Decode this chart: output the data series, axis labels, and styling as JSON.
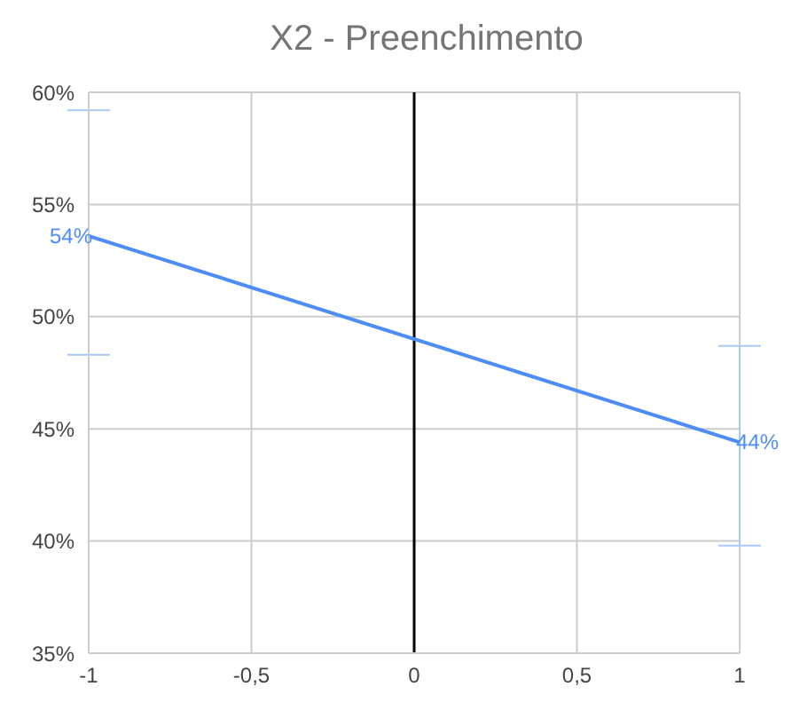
{
  "chart_data": {
    "type": "line",
    "title": "X2 - Preenchimento",
    "x": [
      -1,
      1
    ],
    "series": [
      {
        "color": "#4d8df5",
        "values": [
          53.6,
          44.4
        ],
        "errors": [
          [
            48.3,
            59.2
          ],
          [
            39.8,
            48.7
          ]
        ],
        "value_labels": [
          "54%",
          "44%"
        ]
      }
    ],
    "xlim": [
      -1,
      1
    ],
    "xticks": [
      -1,
      {
        "value": -0.5,
        "label": "-0,5"
      },
      0,
      {
        "value": 0.5,
        "label": "0,5"
      },
      1
    ],
    "ylim": [
      35,
      60
    ],
    "yticks": [
      {
        "value": 35,
        "label": "35%"
      },
      {
        "value": 40,
        "label": "40%"
      },
      {
        "value": 45,
        "label": "45%"
      },
      {
        "value": 50,
        "label": "50%"
      },
      {
        "value": 55,
        "label": "55%"
      },
      {
        "value": 60,
        "label": "60%"
      }
    ],
    "ref_lines": [
      {
        "axis": "x",
        "value": 0,
        "color": "#000000"
      }
    ],
    "grid": true,
    "marker": "none",
    "line_style": "solid"
  }
}
